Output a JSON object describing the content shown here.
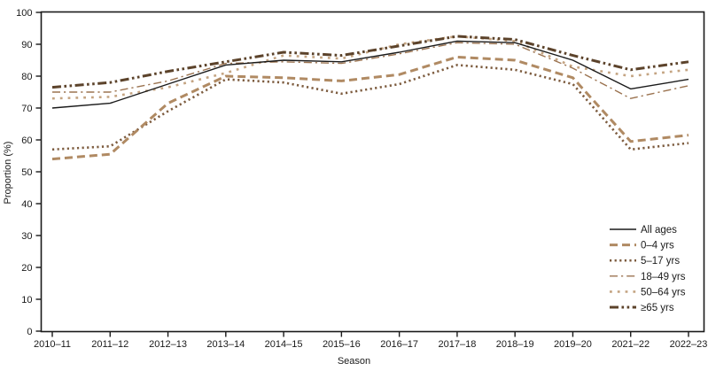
{
  "chart_data": {
    "type": "line",
    "title": "",
    "xlabel": "Season",
    "ylabel": "Proportion (%)",
    "ylim": [
      0,
      100
    ],
    "ytick_step": 10,
    "grid": false,
    "legend_position": "lower right",
    "frame": "full box",
    "categories": [
      "2010–11",
      "2011–12",
      "2012–13",
      "2013–14",
      "2014–15",
      "2015–16",
      "2016–17",
      "2017–18",
      "2018–19",
      "2019–20",
      "2021–22",
      "2022–23"
    ],
    "series": [
      {
        "name": "All ages",
        "style": "solid",
        "color": "#1a1a1a",
        "values": [
          70,
          71.5,
          77.5,
          83.5,
          85,
          84.5,
          87.5,
          91,
          90.5,
          85,
          76,
          79
        ]
      },
      {
        "name": "0–4 yrs",
        "style": "long-dash",
        "color": "#b08a63",
        "values": [
          54,
          55.5,
          71.5,
          80,
          79.5,
          78.5,
          80.5,
          86,
          85,
          79.5,
          59.5,
          61.5
        ]
      },
      {
        "name": "5–17 yrs",
        "style": "dotted",
        "color": "#7d5c3f",
        "values": [
          57,
          58,
          69,
          79,
          78,
          74.5,
          77.5,
          83.5,
          82,
          77.5,
          57,
          59
        ]
      },
      {
        "name": "18–49 yrs",
        "style": "dash-dot",
        "color": "#9b7350",
        "values": [
          75,
          75,
          78.5,
          84,
          84.5,
          84,
          87,
          90.5,
          90,
          82.5,
          73,
          77
        ]
      },
      {
        "name": "50–64 yrs",
        "style": "short-dash",
        "color": "#c4a482",
        "values": [
          73,
          73.5,
          76.5,
          81,
          86.5,
          85.5,
          90,
          92.5,
          91,
          83,
          80,
          82
        ]
      },
      {
        "name": "≥65 yrs",
        "style": "dash-dot-dot",
        "color": "#5c432b",
        "values": [
          76.5,
          78,
          81.5,
          84.5,
          87.5,
          86.5,
          89.5,
          92.5,
          91.5,
          86.5,
          82,
          84.5
        ]
      }
    ]
  }
}
